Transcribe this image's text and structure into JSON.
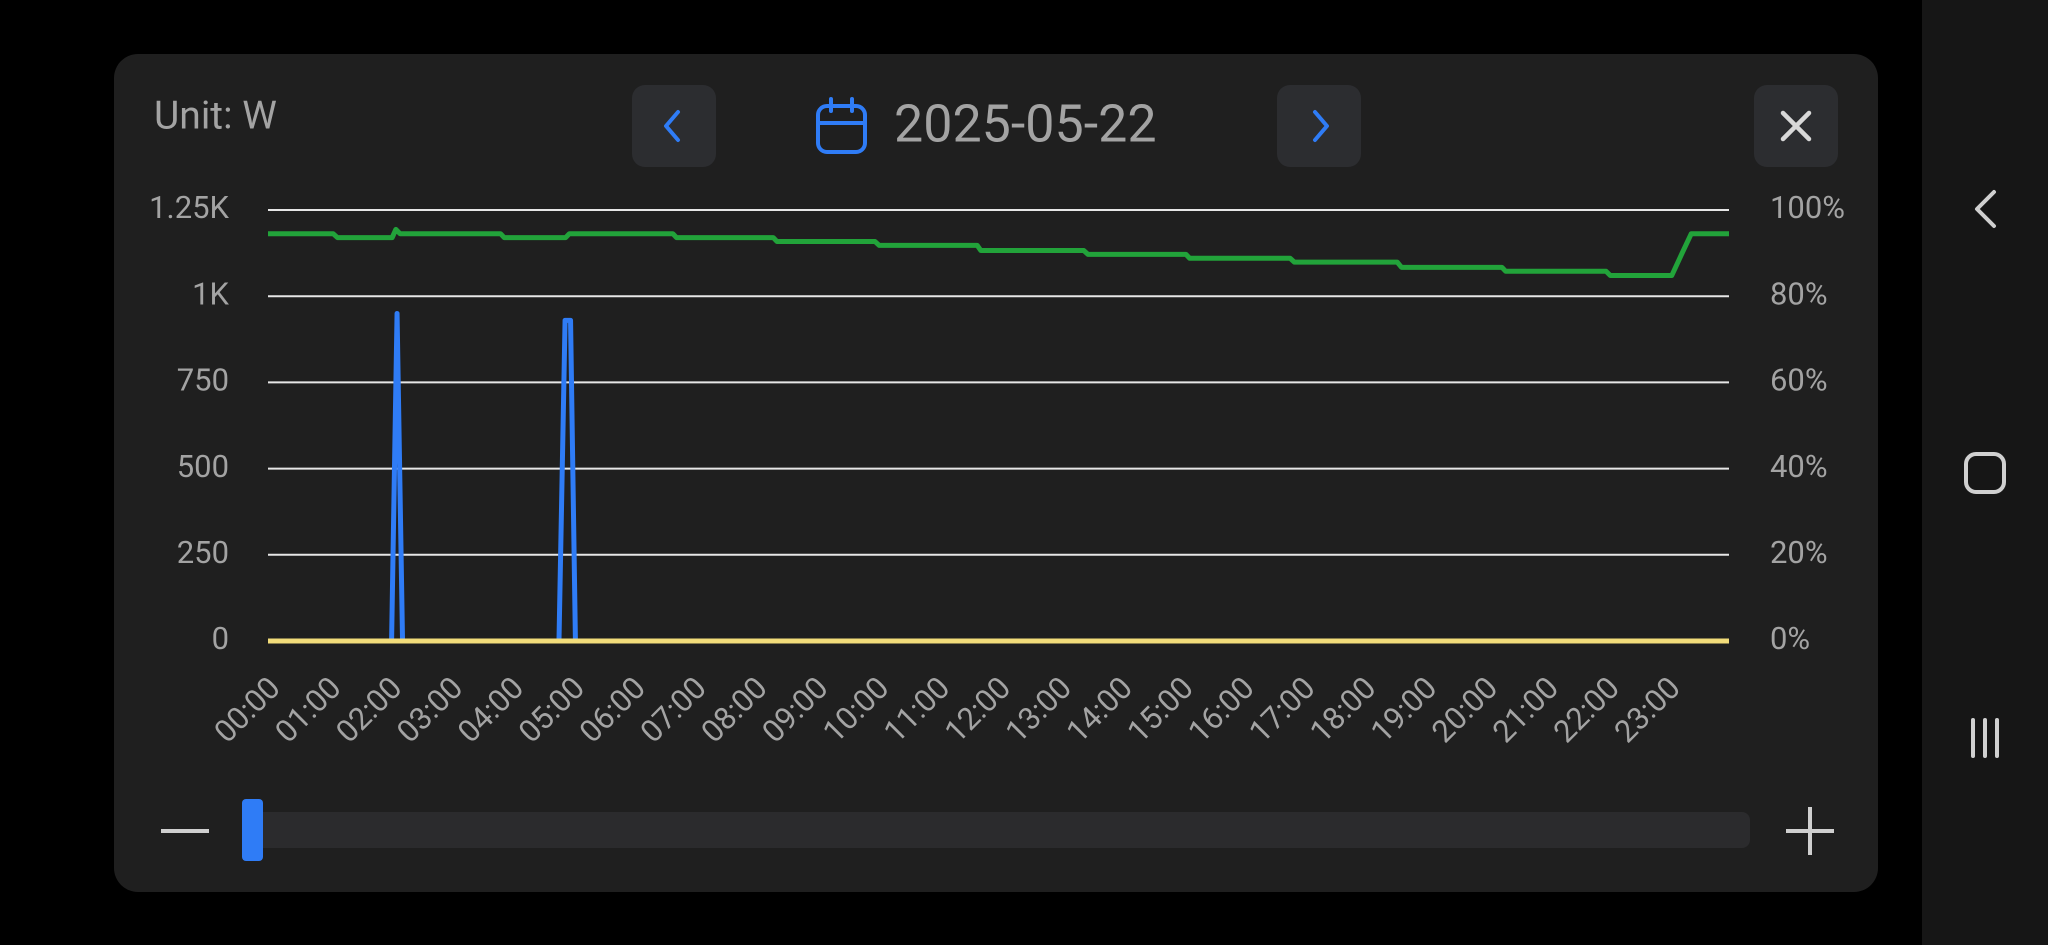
{
  "header": {
    "unit": "Unit: W",
    "date": "2025-05-22"
  },
  "chart_data": {
    "type": "line",
    "xlim": [
      0,
      24
    ],
    "xticks": [
      {
        "value": 0,
        "label": "00:00"
      },
      {
        "value": 1,
        "label": "01:00"
      },
      {
        "value": 2,
        "label": "02:00"
      },
      {
        "value": 3,
        "label": "03:00"
      },
      {
        "value": 4,
        "label": "04:00"
      },
      {
        "value": 5,
        "label": "05:00"
      },
      {
        "value": 6,
        "label": "06:00"
      },
      {
        "value": 7,
        "label": "07:00"
      },
      {
        "value": 8,
        "label": "08:00"
      },
      {
        "value": 9,
        "label": "09:00"
      },
      {
        "value": 10,
        "label": "10:00"
      },
      {
        "value": 11,
        "label": "11:00"
      },
      {
        "value": 12,
        "label": "12:00"
      },
      {
        "value": 13,
        "label": "13:00"
      },
      {
        "value": 14,
        "label": "14:00"
      },
      {
        "value": 15,
        "label": "15:00"
      },
      {
        "value": 16,
        "label": "16:00"
      },
      {
        "value": 17,
        "label": "17:00"
      },
      {
        "value": 18,
        "label": "18:00"
      },
      {
        "value": 19,
        "label": "19:00"
      },
      {
        "value": 20,
        "label": "20:00"
      },
      {
        "value": 21,
        "label": "21:00"
      },
      {
        "value": 22,
        "label": "22:00"
      },
      {
        "value": 23,
        "label": "23:00"
      }
    ],
    "ylim": [
      0,
      1250
    ],
    "yticks": [
      0,
      250,
      500,
      750,
      {
        "value": 1000,
        "label": "1K"
      },
      {
        "value": 1250,
        "label": "1.25K"
      }
    ],
    "y2lim": [
      0,
      100
    ],
    "y2ticks": [
      {
        "value": 0,
        "label": "0%"
      },
      {
        "value": 20,
        "label": "20%"
      },
      {
        "value": 40,
        "label": "40%"
      },
      {
        "value": 60,
        "label": "60%"
      },
      {
        "value": 80,
        "label": "80%"
      },
      {
        "value": 100,
        "label": "100%"
      }
    ],
    "grid": true,
    "series": [
      {
        "color": "#2f7cf6",
        "axis": "y",
        "x": [
          0,
          2.03,
          2.12,
          2.21,
          4.78,
          4.88,
          4.97,
          5.05,
          24
        ],
        "values": [
          0,
          0,
          950,
          0,
          0,
          930,
          930,
          0,
          0
        ]
      },
      {
        "color": "#f2dc7a",
        "axis": "y",
        "x": [
          0,
          24
        ],
        "values": [
          0,
          0
        ]
      },
      {
        "color": "#22a33a",
        "axis": "y2",
        "x": [
          0,
          1.07,
          1.14,
          2.04,
          2.1,
          2.17,
          3.82,
          3.88,
          4.89,
          4.95,
          6.65,
          6.71,
          8.3,
          8.36,
          9.97,
          10.04,
          11.65,
          11.71,
          13.4,
          13.47,
          15.08,
          15.14,
          16.79,
          16.86,
          18.55,
          18.62,
          20.27,
          20.33,
          21.98,
          22.05,
          23.06,
          23.23,
          23.38,
          24
        ],
        "values": [
          94.5,
          94.5,
          93.6,
          93.6,
          95.5,
          94.5,
          94.5,
          93.6,
          93.6,
          94.5,
          94.5,
          93.6,
          93.6,
          92.7,
          92.7,
          91.8,
          91.8,
          90.6,
          90.6,
          89.7,
          89.7,
          88.8,
          88.8,
          87.9,
          87.9,
          86.7,
          86.7,
          85.8,
          85.8,
          84.8,
          84.8,
          90,
          94.5,
          94.5
        ]
      }
    ]
  }
}
